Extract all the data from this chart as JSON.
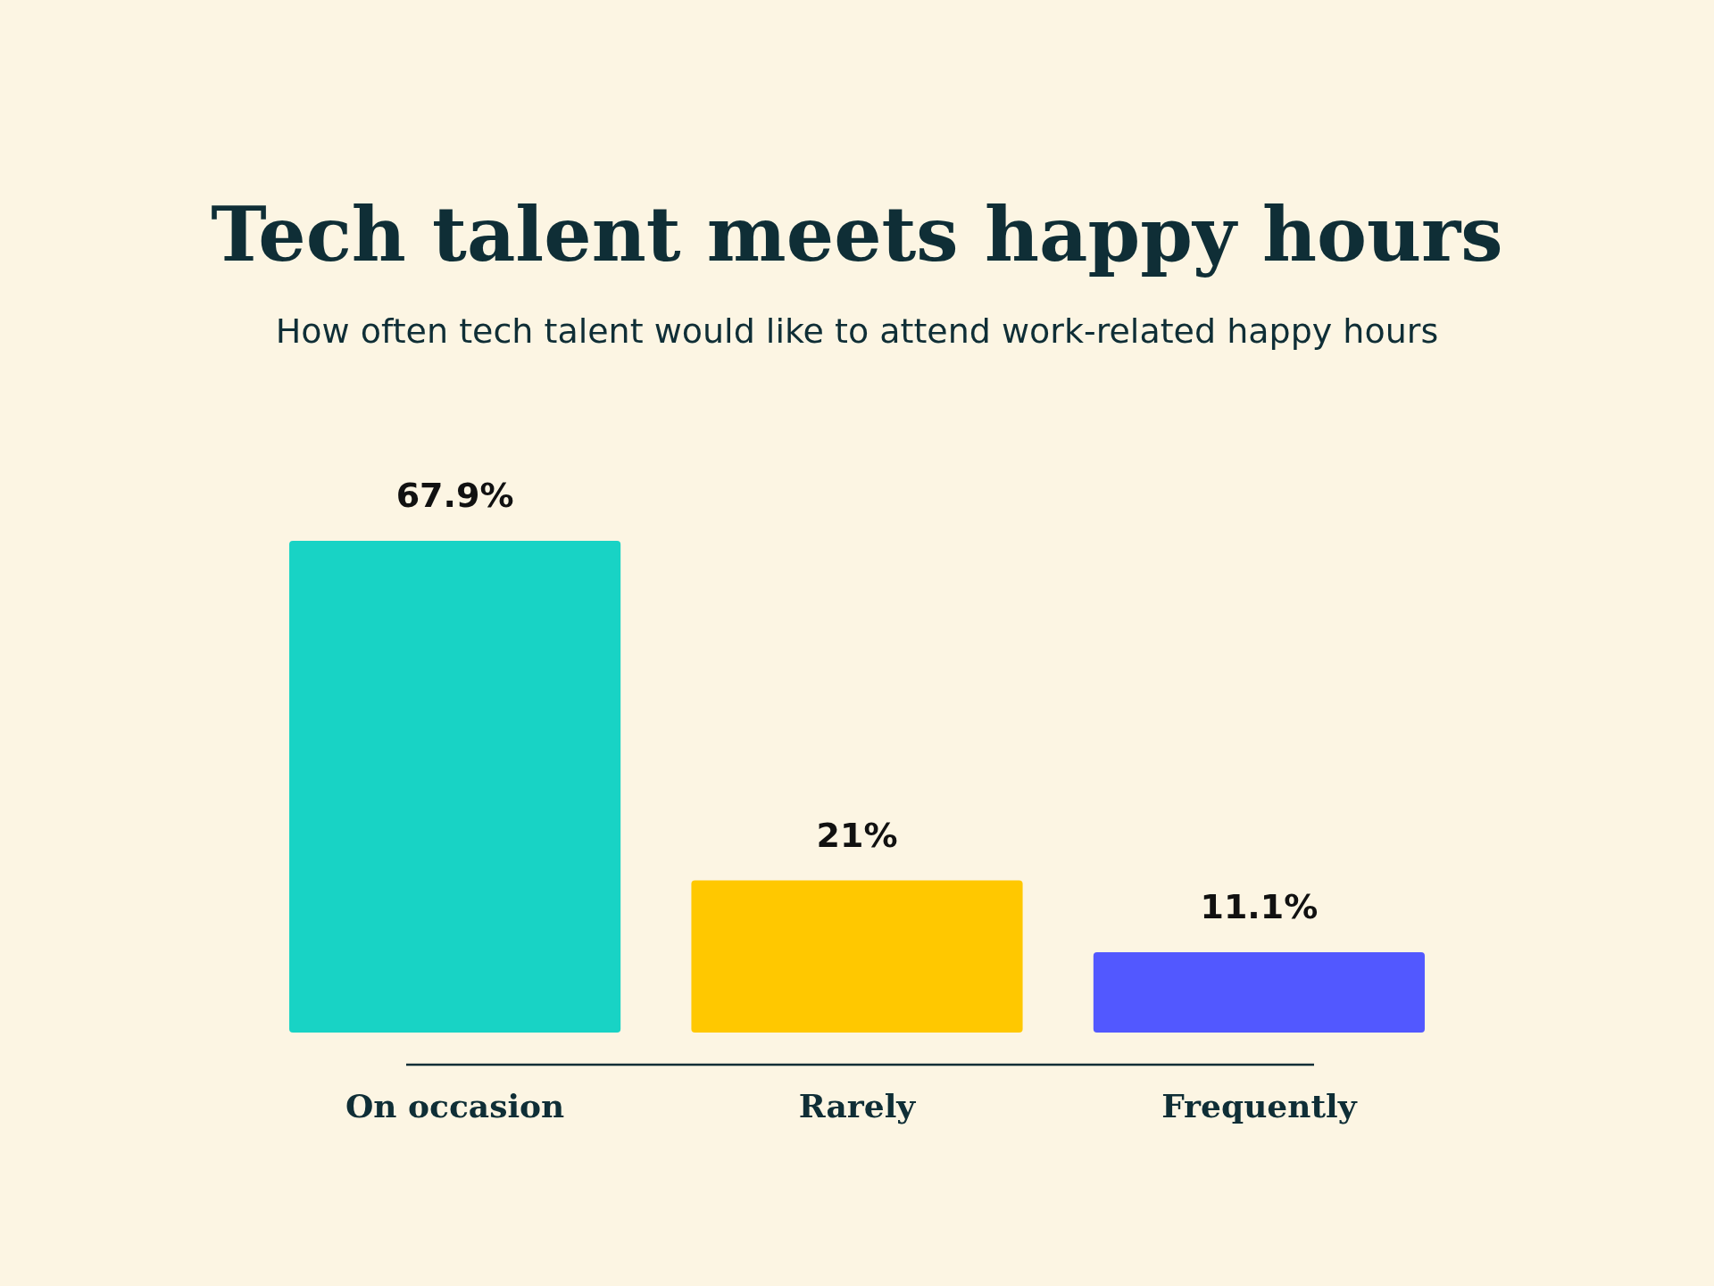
{
  "chart_data": {
    "type": "bar",
    "title": "Tech talent meets happy hours",
    "subtitle": "How often tech talent would like to attend work-related happy hours",
    "categories": [
      "On occasion",
      "Rarely",
      "Frequently"
    ],
    "values": [
      67.9,
      21,
      11.1
    ],
    "value_labels": [
      "67.9%",
      "21%",
      "11.1%"
    ],
    "colors": [
      "#18d3c5",
      "#ffc800",
      "#5258ff"
    ]
  }
}
